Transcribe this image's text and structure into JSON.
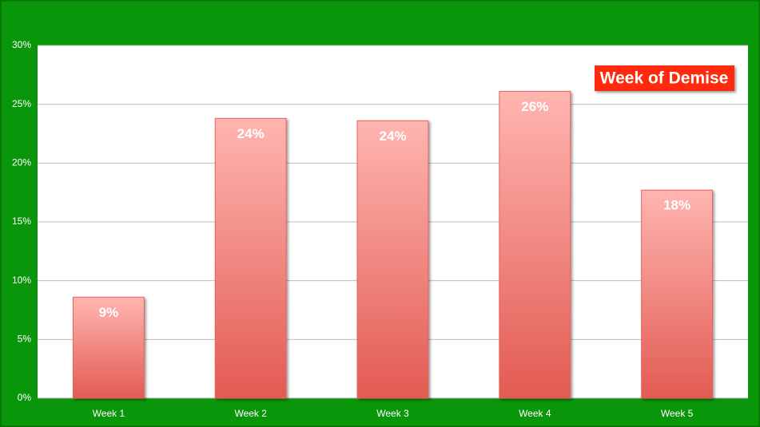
{
  "chart_data": {
    "type": "bar",
    "title": "Week of Demise",
    "categories": [
      "Week 1",
      "Week 2",
      "Week 3",
      "Week 4",
      "Week 5"
    ],
    "values": [
      8.6,
      23.8,
      23.6,
      26.1,
      17.7
    ],
    "value_labels": [
      "9%",
      "24%",
      "24%",
      "26%",
      "18%"
    ],
    "color": "#e8625a",
    "ylim": [
      0,
      30
    ],
    "yticks": [
      {
        "value": 0,
        "label": "0%"
      },
      {
        "value": 5,
        "label": "5%"
      },
      {
        "value": 10,
        "label": "10%"
      },
      {
        "value": 15,
        "label": "15%"
      },
      {
        "value": 20,
        "label": "20%"
      },
      {
        "value": 25,
        "label": "25%"
      },
      {
        "value": 30,
        "label": "30%"
      }
    ],
    "grid": true
  }
}
